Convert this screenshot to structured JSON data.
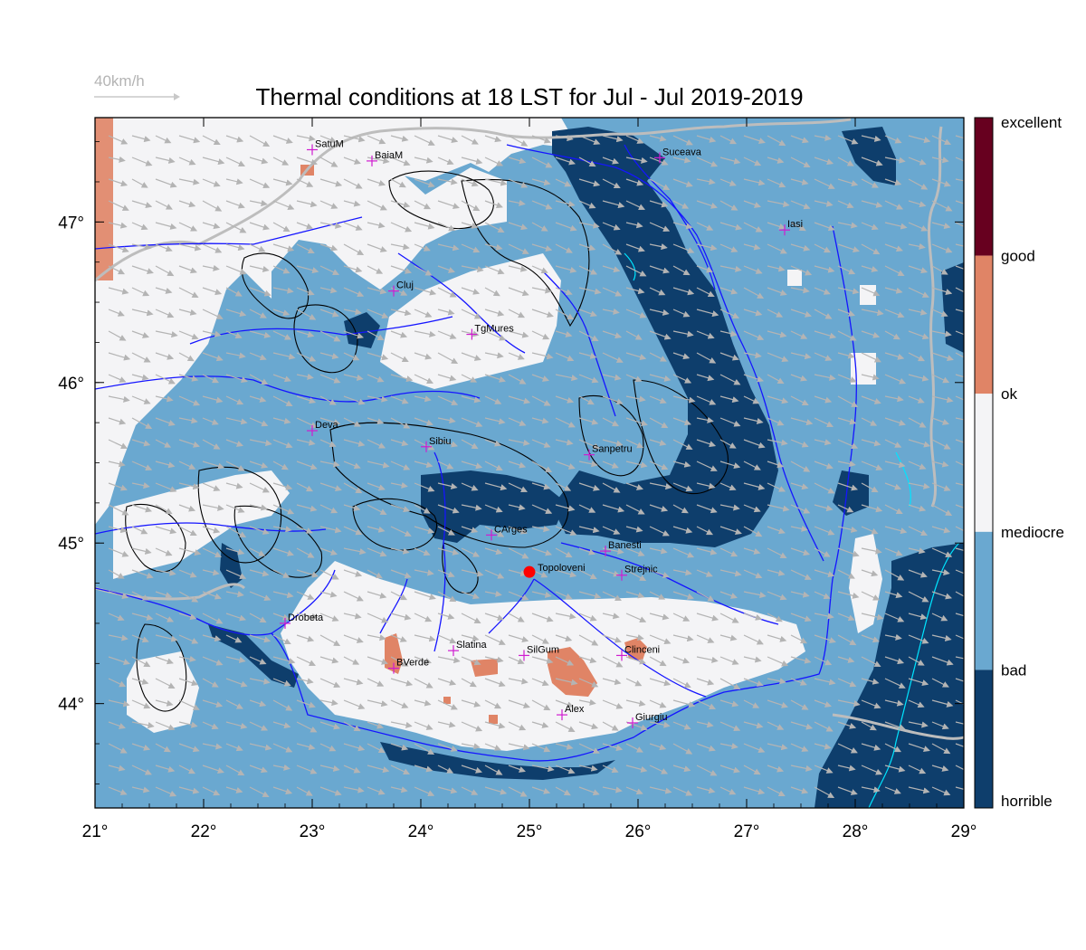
{
  "header": {
    "title": "Thermal conditions at 18 LST for Jul - Jul  2019-2019",
    "wind_scale_label": "40km/h"
  },
  "chart_data": {
    "type": "heatmap",
    "title": "Thermal conditions at 18 LST for Jul - Jul  2019-2019",
    "xlim": [
      21,
      29
    ],
    "ylim": [
      43.35,
      47.65
    ],
    "x_ticks": [
      21,
      22,
      23,
      24,
      25,
      26,
      27,
      28,
      29
    ],
    "y_ticks": [
      44,
      45,
      46,
      47
    ],
    "x_tick_labels": [
      "21°",
      "22°",
      "23°",
      "24°",
      "25°",
      "26°",
      "27°",
      "28°",
      "29°"
    ],
    "y_tick_labels": [
      "44°",
      "45°",
      "46°",
      "47°"
    ],
    "colorbar": {
      "labels": [
        "excellent",
        "good",
        "ok",
        "mediocre",
        "bad",
        "horrible"
      ],
      "colors": [
        "#67001f",
        "#e08466",
        "#f4f4f6",
        "#6aa8d0",
        "#0e3e6c"
      ]
    },
    "colors": {
      "horrible": "#0e3e6c",
      "bad": "#6aa8d0",
      "mediocre": "#f4f4f6",
      "ok": "#e08466",
      "good": "#67001f",
      "wind_arrows": "#b4b4b4",
      "rivers": "#0000ff",
      "borders": "#bdbdbd",
      "contours": "#000000",
      "city_marker": "#d01cd0",
      "site_marker": "#ff0000"
    },
    "cities": [
      {
        "name": "SatuM",
        "lon": 23.0,
        "lat": 47.45
      },
      {
        "name": "BaiaM",
        "lon": 23.55,
        "lat": 47.38
      },
      {
        "name": "Suceava",
        "lon": 26.2,
        "lat": 47.4
      },
      {
        "name": "Iasi",
        "lon": 27.35,
        "lat": 46.95
      },
      {
        "name": "Cluj",
        "lon": 23.75,
        "lat": 46.57
      },
      {
        "name": "TgMures",
        "lon": 24.47,
        "lat": 46.3
      },
      {
        "name": "Deva",
        "lon": 23.0,
        "lat": 45.7
      },
      {
        "name": "Sibiu",
        "lon": 24.05,
        "lat": 45.6
      },
      {
        "name": "Sanpetru",
        "lon": 25.55,
        "lat": 45.55
      },
      {
        "name": "CArges",
        "lon": 24.65,
        "lat": 45.05
      },
      {
        "name": "Banesti",
        "lon": 25.7,
        "lat": 44.95
      },
      {
        "name": "Strejnic",
        "lon": 25.85,
        "lat": 44.8
      },
      {
        "name": "Drobeta",
        "lon": 22.75,
        "lat": 44.5
      },
      {
        "name": "Slatina",
        "lon": 24.3,
        "lat": 44.33
      },
      {
        "name": "SilGum",
        "lon": 24.95,
        "lat": 44.3
      },
      {
        "name": "Clinceni",
        "lon": 25.85,
        "lat": 44.3
      },
      {
        "name": "BVerde",
        "lon": 23.75,
        "lat": 44.22
      },
      {
        "name": "Alex",
        "lon": 25.3,
        "lat": 43.93
      },
      {
        "name": "Giurgiu",
        "lon": 25.95,
        "lat": 43.88
      }
    ],
    "site": {
      "name": "Topoloveni",
      "lon": 25.0,
      "lat": 44.82
    },
    "wind": {
      "speed_kmh": 20,
      "direction": "from north-west"
    }
  }
}
